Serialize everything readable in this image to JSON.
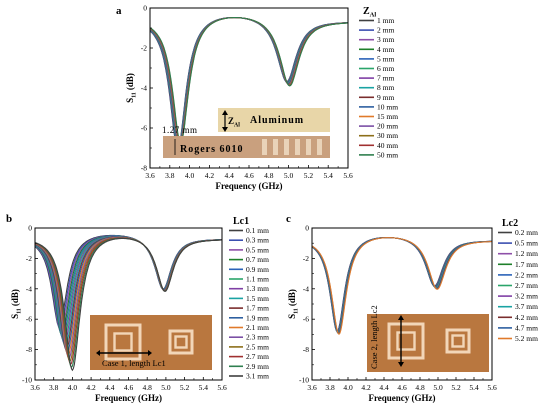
{
  "colors": {
    "palette": [
      "#404040",
      "#3b4fb0",
      "#8e4fa8",
      "#1e7f2a",
      "#2a63b8",
      "#2aa56b",
      "#7f3fa5",
      "#1aa3a3",
      "#7a2d2d",
      "#2d5fa0",
      "#e07a2a",
      "#7b4fa5",
      "#8c6f1a",
      "#a03030",
      "#2f7f4f"
    ],
    "substrate_dark": "#c9a07e",
    "substrate_light": "#e9d3b9",
    "aluminum": "#e8d6a8",
    "antenna_board": "#b9773f",
    "antenna_trace": "#f2d6b8"
  },
  "charts": [
    {
      "panel": "a",
      "type": "line",
      "xlabel": "Frequency (GHz)",
      "ylabel": "S11 (dB)",
      "xlim": [
        3.6,
        5.6
      ],
      "ylim": [
        -8,
        0
      ],
      "xticks": [
        "3.6",
        "3.8",
        "4.0",
        "4.2",
        "4.4",
        "4.6",
        "4.8",
        "5.0",
        "5.2",
        "5.4",
        "5.6"
      ],
      "yticks": [
        "0",
        "-2",
        "-4",
        "-6",
        "-8"
      ],
      "legend_title": "ZAl",
      "legend": [
        "1 mm",
        "2 mm",
        "3 mm",
        "4 mm",
        "5 mm",
        "6 mm",
        "7 mm",
        "8 mm",
        "9 mm",
        "10 mm",
        "15 mm",
        "20 mm",
        "30 mm",
        "40 mm",
        "50 mm"
      ],
      "resonances": [
        {
          "f0": [
            3.88,
            3.91
          ],
          "depth": [
            7.2,
            6.9
          ],
          "width": 0.1
        },
        {
          "f0": [
            4.98,
            5.01
          ],
          "depth": [
            3.7,
            3.9
          ],
          "width": 0.12
        }
      ],
      "baseline": -0.35,
      "inset": {
        "label_top": "Aluminum",
        "label_bottom": "Rogers 6010",
        "dimension": "1.27 mm",
        "arrow_label": "ZAl"
      }
    },
    {
      "panel": "b",
      "type": "line",
      "xlabel": "Frequency (GHz)",
      "ylabel": "S11 (dB)",
      "xlim": [
        3.6,
        5.6
      ],
      "ylim": [
        -10,
        0
      ],
      "xticks": [
        "3.6",
        "3.8",
        "4.0",
        "4.2",
        "4.4",
        "4.6",
        "4.8",
        "5.0",
        "5.2",
        "5.4",
        "5.6"
      ],
      "yticks": [
        "0",
        "-2",
        "-4",
        "-6",
        "-8",
        "-10"
      ],
      "legend_title": "Lc1",
      "legend": [
        "0.1 mm",
        "0.3 mm",
        "0.5 mm",
        "0.7 mm",
        "0.9 mm",
        "1.1 mm",
        "1.3 mm",
        "1.5 mm",
        "1.7 mm",
        "1.9 mm",
        "2.1 mm",
        "2.3 mm",
        "2.5 mm",
        "2.7 mm",
        "2.9 mm",
        "3.1 mm"
      ],
      "resonances": [
        {
          "f0": [
            3.86,
            4.0
          ],
          "depth": [
            6.6,
            9.5
          ],
          "width": 0.1
        },
        {
          "f0": [
            4.97,
            4.99
          ],
          "depth": [
            4.0,
            4.1
          ],
          "width": 0.11
        }
      ],
      "baseline": -0.4,
      "inset": {
        "label": "Case 1, length Lc1"
      }
    },
    {
      "panel": "c",
      "type": "line",
      "xlabel": "Frequency (GHz)",
      "ylabel": "S11 (dB)",
      "xlim": [
        3.6,
        5.6
      ],
      "ylim": [
        -10,
        0
      ],
      "xticks": [
        "3.6",
        "3.8",
        "4.0",
        "4.2",
        "4.4",
        "4.6",
        "4.8",
        "5.0",
        "5.2",
        "5.4",
        "5.6"
      ],
      "yticks": [
        "0",
        "-2",
        "-4",
        "-6",
        "-8",
        "-10"
      ],
      "legend_title": "Lc2",
      "legend": [
        "0.2 mm",
        "0.5 mm",
        "1.2 mm",
        "1.7 mm",
        "2.2 mm",
        "2.7 mm",
        "3.2 mm",
        "3.7 mm",
        "4.2 mm",
        "4.7 mm",
        "5.2 mm"
      ],
      "resonances": [
        {
          "f0": [
            3.88,
            3.9
          ],
          "depth": [
            6.8,
            7.0
          ],
          "width": 0.1
        },
        {
          "f0": [
            4.96,
            4.99
          ],
          "depth": [
            3.7,
            3.9
          ],
          "width": 0.12
        }
      ],
      "baseline": -0.5,
      "inset": {
        "label": "Case 2, length Lc2"
      }
    }
  ]
}
